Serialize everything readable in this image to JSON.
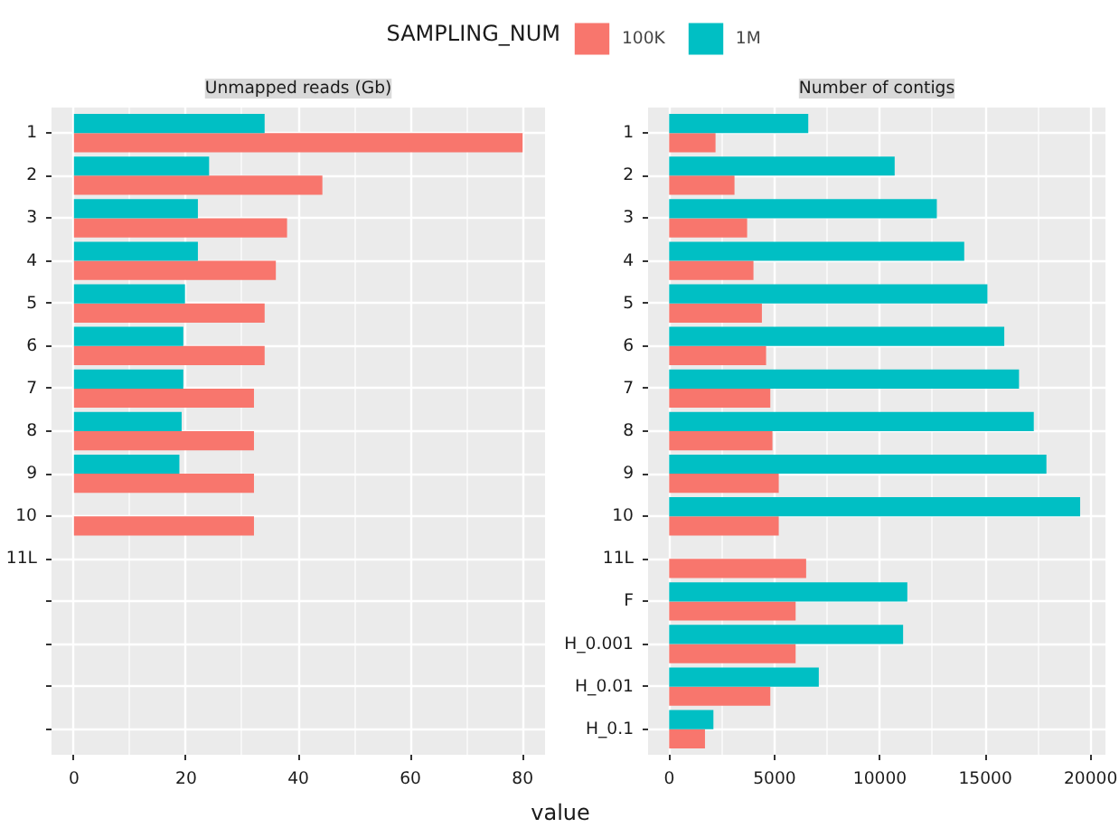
{
  "chart_data": [
    {
      "type": "bar",
      "orientation": "horizontal",
      "title": "Unmapped reads (Gb)",
      "legend_title": "SAMPLING_NUM",
      "legend": "top",
      "xlabel": "value",
      "grid": true,
      "categories": [
        "1",
        "2",
        "3",
        "4",
        "5",
        "6",
        "7",
        "8",
        "9",
        "10",
        "11L",
        null,
        null,
        null,
        null
      ],
      "xlim": [
        -4,
        84
      ],
      "xticks": [
        0,
        20,
        40,
        60,
        80
      ],
      "series": [
        {
          "name": "100K",
          "color": "#f8766d",
          "values": [
            80,
            44.3,
            38,
            36,
            34,
            34,
            32.1,
            32.1,
            32.1,
            32.1,
            null,
            null,
            null,
            null,
            null
          ]
        },
        {
          "name": "1M",
          "color": "#00bfc4",
          "values": [
            34,
            24.1,
            22.1,
            22.1,
            19.8,
            19.5,
            19.5,
            19.2,
            18.8,
            null,
            null,
            null,
            null,
            null,
            null
          ]
        }
      ]
    },
    {
      "type": "bar",
      "orientation": "horizontal",
      "title": "Number of contigs",
      "grid": true,
      "categories": [
        "1",
        "2",
        "3",
        "4",
        "5",
        "6",
        "7",
        "8",
        "9",
        "10",
        "11L",
        "F",
        "H_0.001",
        "H_0.01",
        "H_0.1"
      ],
      "xlim": [
        -1000,
        20700
      ],
      "xticks": [
        0,
        5000,
        10000,
        15000,
        20000
      ],
      "series": [
        {
          "color": "#f8766d",
          "values": [
            2200,
            3100,
            3700,
            4000,
            4400,
            4600,
            4800,
            4900,
            5200,
            5200,
            6500,
            6000,
            6000,
            4800,
            1700
          ]
        },
        {
          "color": "#00bfc4",
          "values": [
            6600,
            10700,
            12700,
            14000,
            15100,
            15900,
            16600,
            17300,
            17900,
            19500,
            null,
            11300,
            11100,
            7100,
            2100
          ]
        }
      ]
    }
  ]
}
